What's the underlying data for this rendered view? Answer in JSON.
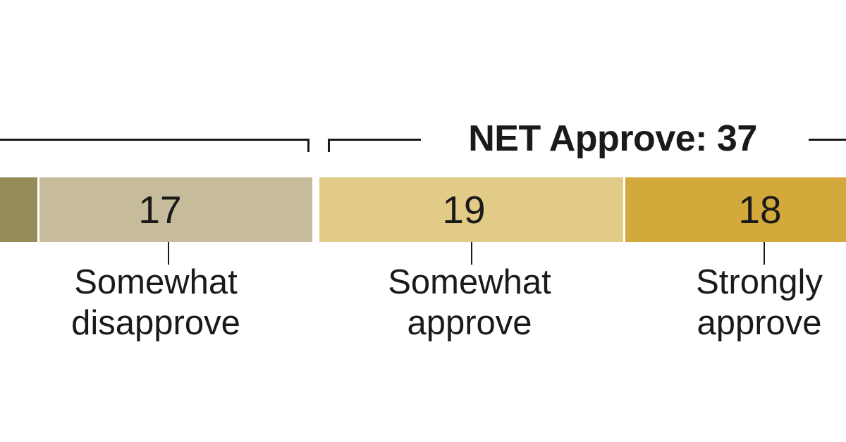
{
  "chart_data": {
    "type": "bar",
    "orientation": "horizontal_stacked",
    "description": "Cropped approval-poll stacked bar; leftmost disapprove segment and its bracket label are cut off at the image edge",
    "net_bracket_label": "NET Approve: 37",
    "net_approve_value": 37,
    "segments": [
      {
        "name": "partial-left-segment",
        "display_value": "",
        "label": "",
        "color": "#948B57"
      },
      {
        "name": "somewhat-disapprove",
        "value": 17,
        "display_value": "17",
        "label": "Somewhat\ndisapprove",
        "color": "#C6BC9C"
      },
      {
        "name": "somewhat-approve",
        "value": 19,
        "display_value": "19",
        "label": "Somewhat\napprove",
        "color": "#E2CB86"
      },
      {
        "name": "strongly-approve",
        "value": 18,
        "display_value": "18",
        "label": "Strongly\napprove",
        "color": "#D2A93A"
      }
    ],
    "colors": {
      "text": "#1A1A1A",
      "line": "#1A1A1A",
      "background": "#FFFFFF"
    },
    "legend_position": "below-bar-callouts",
    "grid": false
  }
}
